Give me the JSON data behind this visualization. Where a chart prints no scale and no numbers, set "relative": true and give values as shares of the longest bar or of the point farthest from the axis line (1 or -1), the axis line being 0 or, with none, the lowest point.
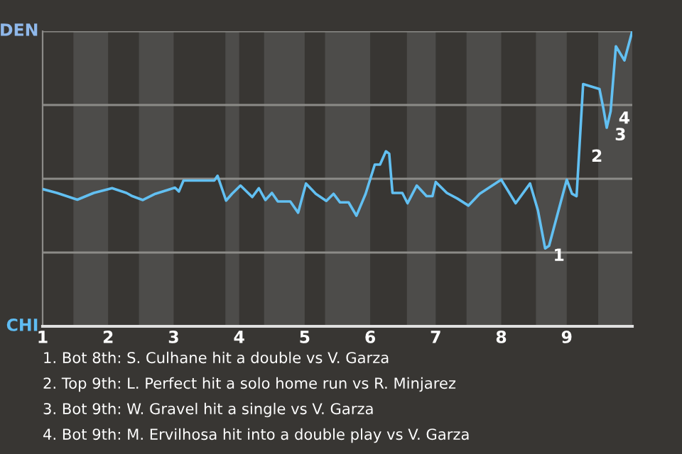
{
  "chart_data": {
    "type": "line",
    "relative": true,
    "x": [
      1,
      1.22,
      1.53,
      1.78,
      2.06,
      2.28,
      2.37,
      2.53,
      2.72,
      2.91,
      3.02,
      3.08,
      3.15,
      3.62,
      3.67,
      3.8,
      3.89,
      4.02,
      4.2,
      4.3,
      4.4,
      4.5,
      4.59,
      4.78,
      4.9,
      5.02,
      5.17,
      5.33,
      5.44,
      5.54,
      5.67,
      5.79,
      5.93,
      6.07,
      6.15,
      6.24,
      6.29,
      6.34,
      6.49,
      6.57,
      6.71,
      6.86,
      6.95,
      7,
      7.17,
      7.33,
      7.5,
      7.67,
      8,
      8.22,
      8.44,
      8.56,
      8.67,
      8.73,
      9,
      9.08,
      9.15,
      9.25,
      9.5,
      9.56,
      9.61,
      9.67,
      9.75,
      9.88,
      10
    ],
    "series": [
      {
        "color": "#62c0f2",
        "values": [
          0.465,
          0.452,
          0.429,
          0.452,
          0.468,
          0.452,
          0.441,
          0.428,
          0.449,
          0.462,
          0.47,
          0.457,
          0.494,
          0.494,
          0.51,
          0.426,
          0.449,
          0.477,
          0.438,
          0.468,
          0.428,
          0.452,
          0.423,
          0.423,
          0.385,
          0.484,
          0.449,
          0.425,
          0.449,
          0.42,
          0.42,
          0.375,
          0.449,
          0.548,
          0.548,
          0.593,
          0.585,
          0.452,
          0.452,
          0.417,
          0.477,
          0.441,
          0.441,
          0.489,
          0.452,
          0.433,
          0.409,
          0.449,
          0.497,
          0.417,
          0.484,
          0.393,
          0.264,
          0.273,
          0.497,
          0.449,
          0.441,
          0.821,
          0.804,
          0.737,
          0.673,
          0.729,
          0.949,
          0.901,
          1.0
        ]
      }
    ],
    "xlim": [
      1,
      10
    ],
    "xticks": [
      1,
      2,
      3,
      4,
      5,
      6,
      7,
      8,
      9
    ],
    "line_style": "solid",
    "ref_lines": [
      {
        "axis": "y",
        "value": 0.25,
        "color": "#8c8b88"
      },
      {
        "axis": "y",
        "value": 0.5,
        "color": "#8c8b88"
      },
      {
        "axis": "y",
        "value": 0.75,
        "color": "#8c8b88"
      },
      {
        "axis": "y",
        "value": 1,
        "color": "#8c8b88"
      }
    ],
    "bands": [
      {
        "axis": "x",
        "from": 1.47,
        "to": 2,
        "color": "#4d4c4a"
      },
      {
        "axis": "x",
        "from": 2.47,
        "to": 3,
        "color": "#4d4c4a"
      },
      {
        "axis": "x",
        "from": 3.79,
        "to": 4,
        "color": "#4d4c4a"
      },
      {
        "axis": "x",
        "from": 4.38,
        "to": 5,
        "color": "#4d4c4a"
      },
      {
        "axis": "x",
        "from": 5.31,
        "to": 6,
        "color": "#4d4c4a"
      },
      {
        "axis": "x",
        "from": 6.56,
        "to": 7,
        "color": "#4d4c4a"
      },
      {
        "axis": "x",
        "from": 7.47,
        "to": 8,
        "color": "#4d4c4a"
      },
      {
        "axis": "x",
        "from": 8.53,
        "to": 9,
        "color": "#4d4c4a"
      },
      {
        "axis": "x",
        "from": 9.48,
        "to": 10,
        "color": "#4d4c4a"
      }
    ],
    "annotations": [
      "DEN",
      "CHI",
      {
        "text": "1",
        "x": 8.67,
        "y": 0.264
      },
      {
        "text": "2",
        "x": 9.25,
        "y": 0.6
      },
      {
        "text": "3",
        "x": 9.61,
        "y": 0.673
      },
      {
        "text": "4",
        "x": 9.67,
        "y": 0.729
      },
      "1. Bot 8th: S. Culhane hit a double vs V. Garza",
      "2. Top 9th: L. Perfect hit a solo home run vs R. Minjarez",
      "3. Bot 9th: W. Gravel hit a single vs V. Garza",
      "4. Bot 9th: M. Ervilhosa hit into a double play vs V. Garza"
    ]
  }
}
